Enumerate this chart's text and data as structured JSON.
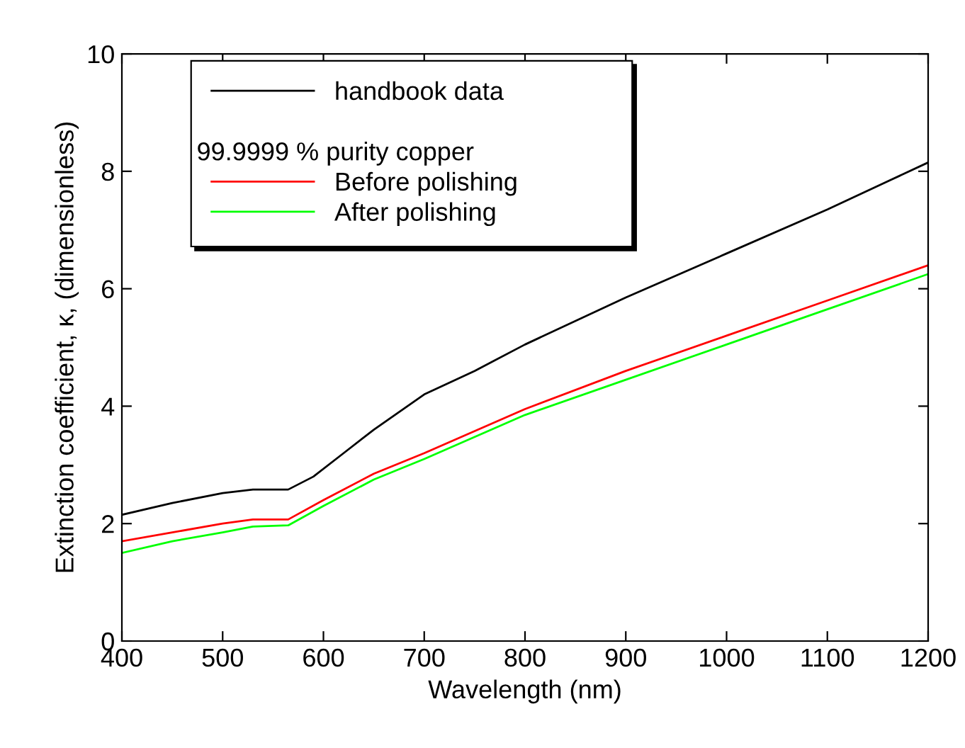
{
  "chart_data": {
    "type": "line",
    "xlabel": "Wavelength (nm)",
    "ylabel": "Extinction coefficient, κ, (dimensionless)",
    "xlim": [
      400,
      1200
    ],
    "xticks": [
      400,
      500,
      600,
      700,
      800,
      900,
      1000,
      1100,
      1200
    ],
    "ylim": [
      0,
      10
    ],
    "yticks": [
      0,
      2,
      4,
      6,
      8,
      10
    ],
    "legend": "top left",
    "legend_title": "99.9999 % purity copper",
    "series": [
      {
        "name": "handbook data",
        "color": "#000000",
        "x": [
          400,
          450,
          500,
          530,
          565,
          590,
          620,
          650,
          700,
          750,
          800,
          900,
          1000,
          1100,
          1200
        ],
        "values": [
          2.15,
          2.35,
          2.52,
          2.58,
          2.58,
          2.8,
          3.2,
          3.6,
          4.2,
          4.6,
          5.05,
          5.85,
          6.6,
          7.35,
          8.15
        ]
      },
      {
        "name": "Before polishing",
        "color": "#ff0000",
        "x": [
          400,
          450,
          500,
          530,
          565,
          600,
          650,
          700,
          800,
          900,
          1000,
          1100,
          1200
        ],
        "values": [
          1.7,
          1.85,
          2.0,
          2.07,
          2.07,
          2.4,
          2.85,
          3.2,
          3.95,
          4.6,
          5.2,
          5.8,
          6.4
        ]
      },
      {
        "name": "After polishing",
        "color": "#00ff00",
        "x": [
          400,
          450,
          500,
          530,
          565,
          600,
          650,
          700,
          800,
          900,
          1000,
          1100,
          1200
        ],
        "values": [
          1.5,
          1.7,
          1.85,
          1.95,
          1.97,
          2.3,
          2.75,
          3.1,
          3.85,
          4.45,
          5.05,
          5.65,
          6.25
        ]
      }
    ]
  }
}
